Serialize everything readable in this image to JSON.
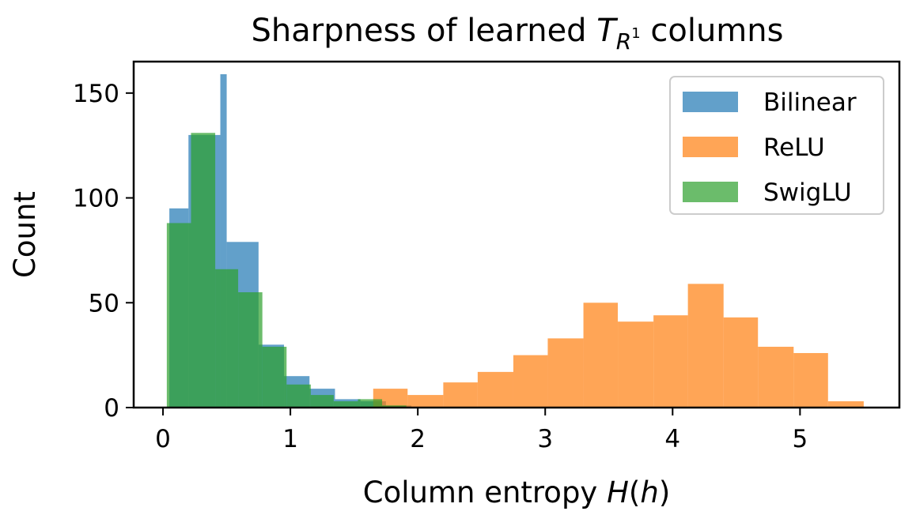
{
  "chart_data": {
    "type": "histogram",
    "title": "Sharpness of learned T_{R^1} columns",
    "title_parts": {
      "prefix": "Sharpness of learned ",
      "T": "T",
      "sub": "R",
      "sup": "1",
      "suffix": " columns"
    },
    "xlabel": "Column entropy H(h)",
    "xlabel_parts": {
      "prefix": "Column entropy ",
      "H": "H",
      "lp": "(",
      "h": "h",
      "rp": ")"
    },
    "ylabel": "Count",
    "xlim": [
      -0.23,
      5.78
    ],
    "ylim": [
      0,
      165
    ],
    "xticks": [
      0,
      1,
      2,
      3,
      4,
      5
    ],
    "yticks": [
      0,
      50,
      100,
      150
    ],
    "legend_position": "upper right",
    "series": [
      {
        "name": "Bilinear",
        "color": "#1f77b4",
        "opacity": 0.7,
        "bin_edges": [
          0.05,
          0.2,
          0.45,
          0.5,
          0.75,
          0.95,
          1.15,
          1.35,
          1.55,
          1.75,
          1.95
        ],
        "counts": [
          95,
          130,
          159,
          79,
          30,
          15,
          9,
          4,
          3,
          1
        ]
      },
      {
        "name": "ReLU",
        "color": "#ff7f0e",
        "opacity": 0.7,
        "bin_edges": [
          1.65,
          1.92,
          2.2,
          2.47,
          2.75,
          3.02,
          3.3,
          3.57,
          3.85,
          4.12,
          4.4,
          4.67,
          4.95,
          5.22,
          5.5
        ],
        "counts": [
          9,
          6,
          12,
          17,
          25,
          33,
          50,
          41,
          44,
          59,
          43,
          29,
          26,
          3
        ]
      },
      {
        "name": "SwigLU",
        "color": "#2ca02c",
        "opacity": 0.7,
        "bin_edges": [
          0.03,
          0.22,
          0.41,
          0.59,
          0.78,
          0.97,
          1.16,
          1.34,
          1.53,
          1.72,
          1.91
        ],
        "counts": [
          88,
          131,
          66,
          55,
          29,
          11,
          6,
          3,
          4,
          1
        ]
      }
    ]
  }
}
